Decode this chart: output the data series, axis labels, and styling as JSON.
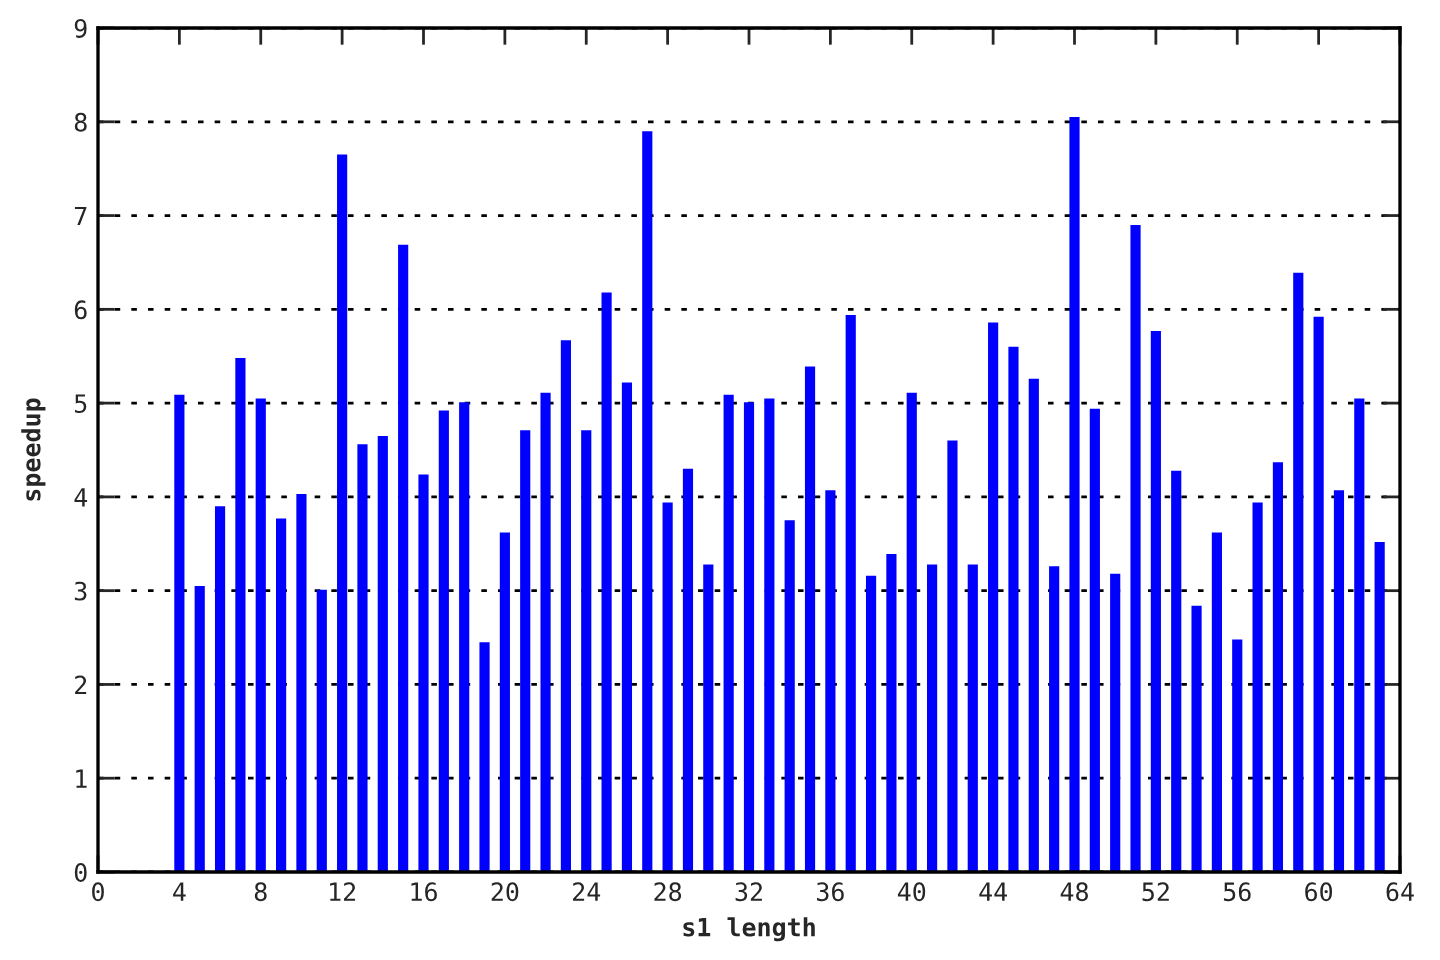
{
  "chart_data": {
    "type": "bar",
    "xlabel": "s1 length",
    "ylabel": "speedup",
    "color": "#0000ff",
    "x": [
      4,
      5,
      6,
      7,
      8,
      9,
      10,
      11,
      12,
      13,
      14,
      15,
      16,
      17,
      18,
      19,
      20,
      21,
      22,
      23,
      24,
      25,
      26,
      27,
      28,
      29,
      30,
      31,
      32,
      33,
      34,
      35,
      36,
      37,
      38,
      39,
      40,
      41,
      42,
      43,
      44,
      45,
      46,
      47,
      48,
      49,
      50,
      51,
      52,
      53,
      54,
      55,
      56,
      57,
      58,
      59,
      60,
      61,
      62,
      63
    ],
    "values": [
      5.09,
      3.05,
      3.9,
      5.48,
      5.05,
      3.77,
      4.03,
      3.01,
      7.65,
      4.56,
      4.65,
      6.69,
      4.24,
      4.92,
      5.01,
      2.45,
      3.62,
      4.71,
      5.11,
      5.67,
      4.71,
      6.18,
      5.22,
      7.9,
      3.94,
      4.3,
      3.28,
      5.09,
      5.01,
      5.05,
      3.75,
      5.39,
      4.07,
      5.94,
      3.16,
      3.39,
      5.11,
      3.28,
      4.6,
      3.28,
      5.86,
      5.6,
      5.26,
      3.26,
      8.05,
      4.94,
      3.18,
      6.9,
      5.77,
      4.28,
      2.84,
      3.62,
      2.48,
      3.94,
      4.37,
      6.39,
      5.92,
      4.07,
      5.05,
      3.52
    ],
    "xlim": [
      0,
      64
    ],
    "xticks": [
      0,
      4,
      8,
      12,
      16,
      20,
      24,
      28,
      32,
      36,
      40,
      44,
      48,
      52,
      56,
      60,
      64
    ],
    "ylim": [
      0,
      9
    ],
    "yticks": [
      0,
      1,
      2,
      3,
      4,
      5,
      6,
      7,
      8,
      9
    ],
    "grid": "y"
  }
}
